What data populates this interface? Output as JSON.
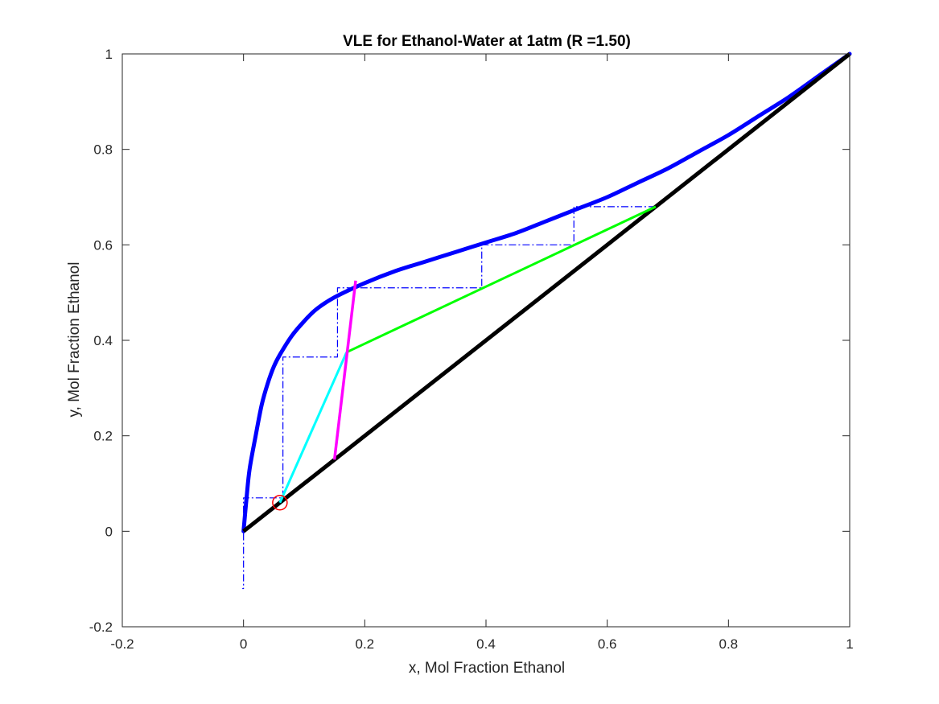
{
  "chart_data": {
    "type": "line",
    "title": "VLE for Ethanol-Water at 1atm (R =1.50)",
    "xlabel": "x, Mol Fraction Ethanol",
    "ylabel": "y, Mol Fraction Ethanol",
    "xlim": [
      -0.2,
      1
    ],
    "ylim": [
      -0.2,
      1
    ],
    "xticks": [
      -0.2,
      0,
      0.2,
      0.4,
      0.6,
      0.8,
      1
    ],
    "yticks": [
      -0.2,
      0,
      0.2,
      0.4,
      0.6,
      0.8,
      1
    ],
    "xtick_labels": [
      "-0.2",
      "0",
      "0.2",
      "0.4",
      "0.6",
      "0.8",
      "1"
    ],
    "ytick_labels": [
      "-0.2",
      "0",
      "0.2",
      "0.4",
      "0.6",
      "0.8",
      "1"
    ],
    "grid": false,
    "box": true,
    "series": [
      {
        "id": "equilibrium",
        "color": "#0000ff",
        "style": "solid",
        "x": [
          0,
          0.005,
          0.01,
          0.02,
          0.03,
          0.04,
          0.05,
          0.06,
          0.08,
          0.1,
          0.12,
          0.15,
          0.2,
          0.25,
          0.3,
          0.35,
          0.4,
          0.45,
          0.5,
          0.55,
          0.6,
          0.65,
          0.7,
          0.75,
          0.8,
          0.85,
          0.9,
          0.95,
          1.0
        ],
        "y": [
          0,
          0.07,
          0.13,
          0.2,
          0.265,
          0.31,
          0.345,
          0.37,
          0.41,
          0.44,
          0.465,
          0.49,
          0.52,
          0.545,
          0.565,
          0.585,
          0.605,
          0.625,
          0.65,
          0.675,
          0.7,
          0.73,
          0.76,
          0.795,
          0.83,
          0.87,
          0.91,
          0.955,
          1.0
        ]
      },
      {
        "id": "diagonal",
        "color": "#000000",
        "style": "solid",
        "x": [
          0,
          1
        ],
        "y": [
          0,
          1
        ]
      },
      {
        "id": "rectifying-operating-line",
        "color": "#00ff00",
        "style": "solid",
        "x": [
          0.17,
          0.68
        ],
        "y": [
          0.375,
          0.68
        ]
      },
      {
        "id": "stripping-operating-line",
        "color": "#00ffff",
        "style": "solid",
        "x": [
          0.06,
          0.17
        ],
        "y": [
          0.06,
          0.375
        ]
      },
      {
        "id": "q-line",
        "color": "#ff00ff",
        "style": "solid",
        "x": [
          0.15,
          0.185
        ],
        "y": [
          0.15,
          0.525
        ]
      },
      {
        "id": "stages",
        "color": "#0000ff",
        "style": "dashdot",
        "x": [
          0.68,
          0.545,
          0.545,
          0.393,
          0.393,
          0.155,
          0.155,
          0.065,
          0.065,
          0,
          0,
          -0.002
        ],
        "y": [
          0.68,
          0.68,
          0.6,
          0.6,
          0.51,
          0.51,
          0.365,
          0.365,
          0.07,
          0.07,
          -0.12,
          -0.12
        ]
      }
    ],
    "markers": [
      {
        "id": "bottoms-composition",
        "x": 0.06,
        "y": 0.06,
        "shape": "circle",
        "color": "#ff0000"
      }
    ]
  }
}
